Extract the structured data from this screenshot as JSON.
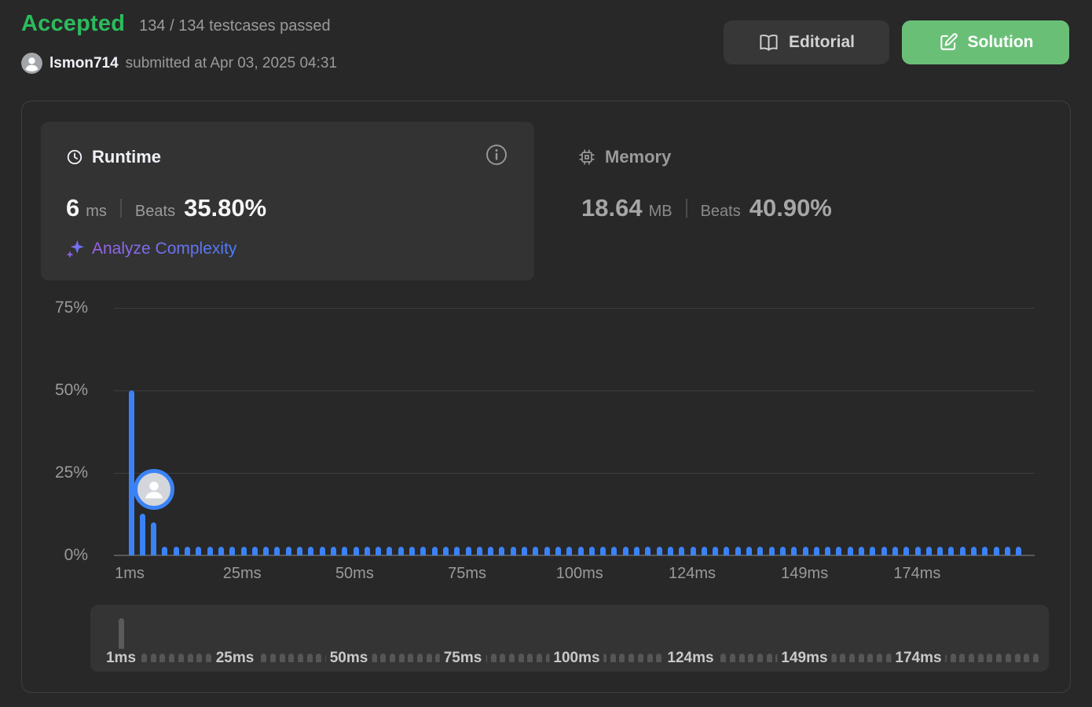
{
  "header": {
    "status": "Accepted",
    "testcases": "134 / 134 testcases passed",
    "username": "lsmon714",
    "submitted": "submitted at Apr 03, 2025 04:31",
    "editorial_label": "Editorial",
    "solution_label": "Solution"
  },
  "runtime_panel": {
    "title": "Runtime",
    "value": "6",
    "unit": "ms",
    "beats_label": "Beats",
    "beats_value": "35.80%",
    "analyze_label": "Analyze Complexity"
  },
  "memory_panel": {
    "title": "Memory",
    "value": "18.64",
    "unit": "MB",
    "beats_label": "Beats",
    "beats_value": "40.90%"
  },
  "colors": {
    "accent_green": "#2cbb5d",
    "solution_green": "#6abf77",
    "bar_blue": "#3b82f6",
    "gradient_purple": "#9c63e8",
    "gradient_blue": "#4a7cfa",
    "panel_bg": "#333333",
    "page_bg": "#282828"
  },
  "chart_data": {
    "type": "bar",
    "title": "",
    "xlabel": "",
    "ylabel": "",
    "x_tick_labels": [
      "1ms",
      "25ms",
      "50ms",
      "75ms",
      "100ms",
      "124ms",
      "149ms",
      "174ms"
    ],
    "y_tick_labels": [
      "0%",
      "25%",
      "50%",
      "75%"
    ],
    "ylim": [
      0,
      75
    ],
    "grid": true,
    "bar_count": 80,
    "default_value_pct": 2.6,
    "bars_pct": {
      "0": 50,
      "1": 12.7,
      "2": 9.9
    },
    "user_marker": {
      "bar_index": 2,
      "y_pct": 20,
      "runtime": "6 ms"
    },
    "minimap": {
      "x_tick_labels": [
        "1ms",
        "25ms",
        "50ms",
        "75ms",
        "100ms",
        "124ms",
        "149ms",
        "174ms"
      ],
      "spike": {
        "index": 0,
        "value_pct": 50
      },
      "default_value_pct": 2.6
    }
  }
}
